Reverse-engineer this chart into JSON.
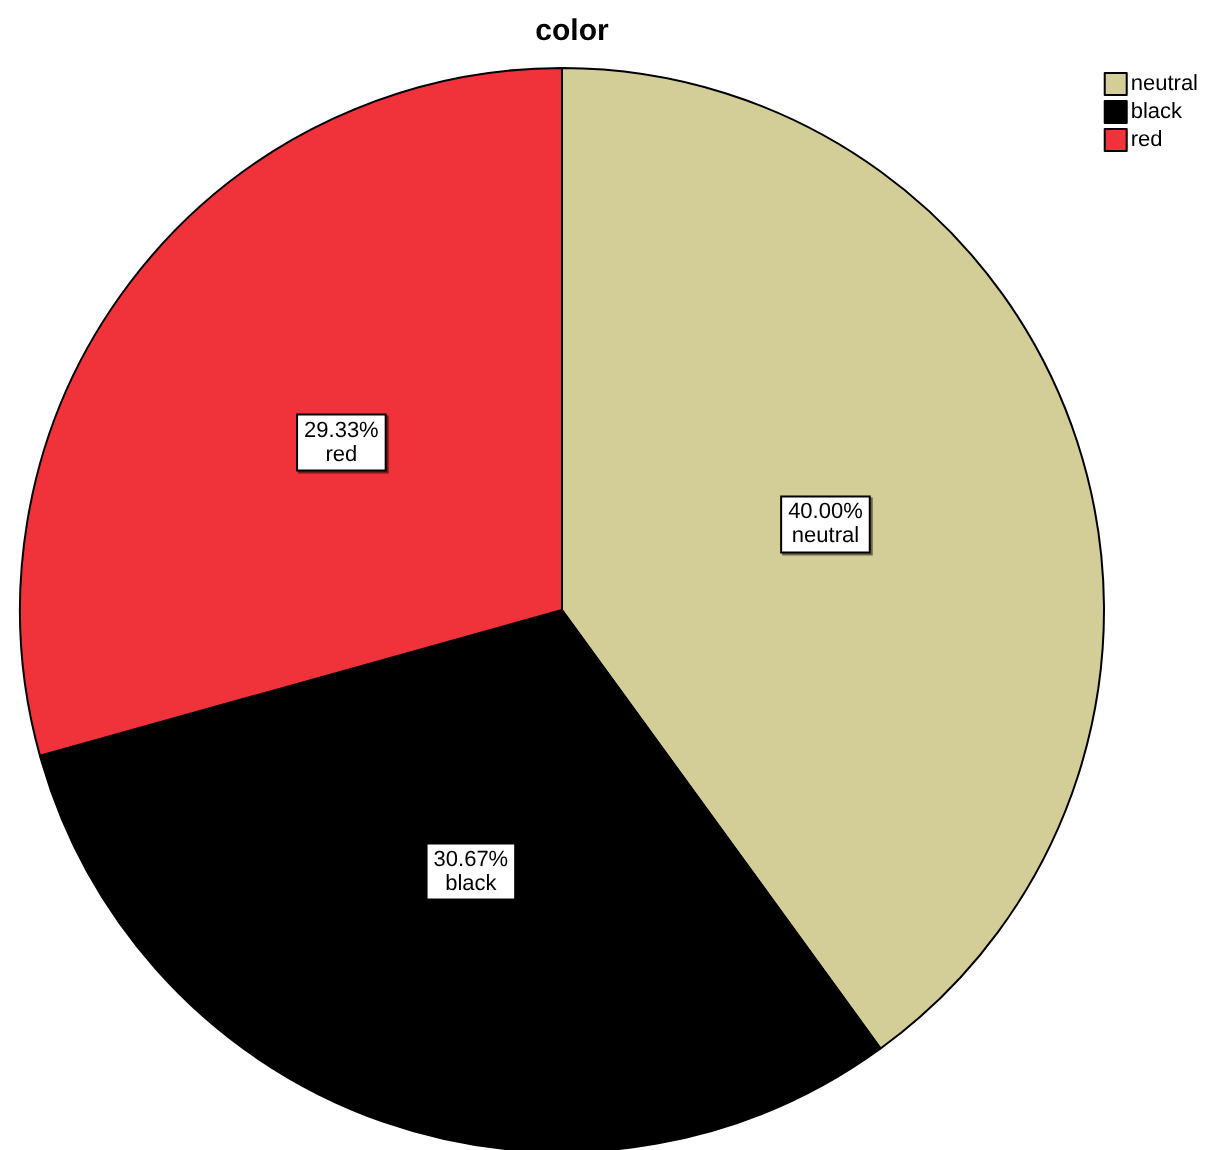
{
  "chart_data": {
    "type": "pie",
    "title": "color",
    "categories": [
      "neutral",
      "black",
      "red"
    ],
    "values": [
      40.0,
      30.67,
      29.33
    ],
    "colors": [
      "#d3ce97",
      "#000000",
      "#f0323a"
    ],
    "value_labels": [
      "40.00%",
      "30.67%",
      "29.33%"
    ],
    "legend": "top right"
  }
}
